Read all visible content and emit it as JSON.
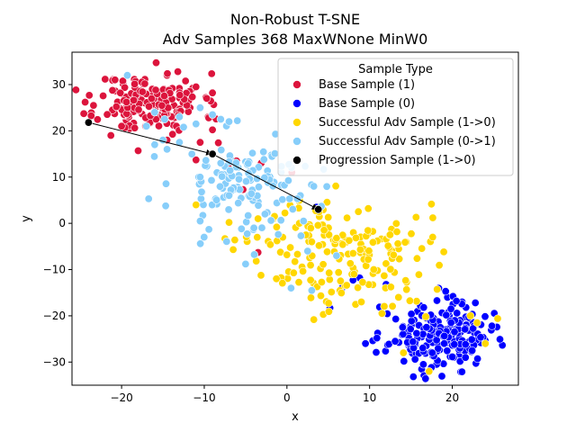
{
  "chart_data": {
    "type": "scatter",
    "title": "Non-Robust T-SNE\nAdv Samples 368 MaxWNone MinW0",
    "xlabel": "x",
    "ylabel": "y",
    "xlim": [
      -26,
      28
    ],
    "ylim": [
      -35,
      37
    ],
    "xticks": [
      -20,
      -10,
      0,
      10,
      20
    ],
    "yticks": [
      -30,
      -20,
      -10,
      0,
      10,
      20,
      30
    ],
    "grid": false,
    "legend": {
      "title": "Sample Type",
      "placement": "top-right"
    },
    "series": [
      {
        "name": "Base Sample (1)",
        "color": "#dc143c",
        "cluster": {
          "cx": -16.5,
          "cy": 26.0,
          "sx": 3.2,
          "sy": 3.2,
          "n": 175,
          "seed": 11
        },
        "points": [
          [
            -24,
            21.8
          ],
          [
            -18,
            15.7
          ],
          [
            -20.8,
            31.0
          ],
          [
            -13.2,
            32.8
          ],
          [
            -9.0,
            28.2
          ],
          [
            -23.4,
            25.5
          ],
          [
            -9.7,
            27.0
          ],
          [
            -11.0,
            13.7
          ],
          [
            -10.5,
            17.5
          ],
          [
            -14.5,
            18.0
          ],
          [
            -9.0,
            20.2
          ],
          [
            -21.3,
            19.0
          ],
          [
            -20.0,
            21.0
          ],
          [
            -11.0,
            29.5
          ],
          [
            -3.1,
            13.0
          ],
          [
            -2.4,
            10.3
          ],
          [
            -1.6,
            8.8
          ],
          [
            0.6,
            11.0
          ],
          [
            -3.5,
            -6.3
          ],
          [
            4.4,
            -8.9
          ],
          [
            -6.1,
            13.5
          ],
          [
            -5.3,
            7.3
          ],
          [
            -7.1,
            12.1
          ],
          [
            -8.3,
            17.4
          ]
        ]
      },
      {
        "name": "Base Sample (0)",
        "color": "#0000ff",
        "cluster": {
          "cx": 18.5,
          "cy": -24.5,
          "sx": 3.0,
          "sy": 3.4,
          "n": 195,
          "seed": 23
        },
        "points": [
          [
            3.6,
            3.5
          ],
          [
            12.0,
            -13.2
          ],
          [
            8.8,
            -11.8
          ],
          [
            8.0,
            -12.3
          ],
          [
            6.7,
            -13.9
          ],
          [
            5.2,
            -18.3
          ],
          [
            9.5,
            -26.0
          ],
          [
            10.8,
            -27.9
          ],
          [
            16.5,
            -30.5
          ],
          [
            22.4,
            -27.5
          ],
          [
            24.8,
            -22.2
          ],
          [
            22.8,
            -17.2
          ],
          [
            19.2,
            -14.7
          ],
          [
            17.4,
            -19.8
          ],
          [
            14.0,
            -22.5
          ],
          [
            13.1,
            -25.5
          ],
          [
            15.5,
            -29.4
          ],
          [
            21.6,
            -29.0
          ],
          [
            20.5,
            -16.8
          ],
          [
            11.2,
            -18.1
          ]
        ]
      },
      {
        "name": "Successful Adv Sample (1->0)",
        "color": "#ffd700",
        "cluster": {
          "cx": 7.0,
          "cy": -6.5,
          "sx": 5.0,
          "sy": 6.0,
          "n": 165,
          "seed": 37
        },
        "points": [
          [
            -11.0,
            4.0
          ],
          [
            -7.5,
            -3.3
          ],
          [
            -7.0,
            0.2
          ],
          [
            -6.3,
            -3.6
          ],
          [
            -6.5,
            -5.7
          ],
          [
            -3.5,
            1.0
          ],
          [
            -2.0,
            -4.6
          ],
          [
            0.0,
            -6.8
          ],
          [
            2.3,
            -2.5
          ],
          [
            5.0,
            1.3
          ],
          [
            17.2,
            -32.0
          ],
          [
            24.0,
            -26.0
          ],
          [
            25.5,
            -20.6
          ],
          [
            23.0,
            -21.5
          ],
          [
            22.2,
            -20.0
          ],
          [
            14.1,
            -28.0
          ],
          [
            16.8,
            -20.2
          ],
          [
            13.5,
            -16.0
          ],
          [
            11.5,
            -19.5
          ],
          [
            9.0,
            -17.0
          ],
          [
            10.5,
            -10.0
          ],
          [
            8.0,
            -6.5
          ],
          [
            3.0,
            -4.0
          ],
          [
            4.5,
            -1.5
          ],
          [
            6.0,
            -3.2
          ],
          [
            -1.5,
            1.5
          ],
          [
            -0.5,
            -3.0
          ],
          [
            1.5,
            0.0
          ]
        ]
      },
      {
        "name": "Successful Adv Sample (0->1)",
        "color": "#87cefa",
        "cluster": {
          "cx": -4.5,
          "cy": 8.0,
          "sx": 4.6,
          "sy": 5.2,
          "n": 130,
          "seed": 53
        },
        "points": [
          [
            -19.3,
            32.0
          ],
          [
            -16.0,
            24.0
          ],
          [
            -14.8,
            22.5
          ],
          [
            -13.0,
            23.0
          ],
          [
            -12.5,
            20.8
          ],
          [
            -11.0,
            21.5
          ],
          [
            -10.5,
            25.0
          ],
          [
            -9.0,
            23.5
          ],
          [
            -8.0,
            22.5
          ],
          [
            -7.0,
            22.0
          ],
          [
            -6.0,
            22.2
          ],
          [
            -17.0,
            21.0
          ],
          [
            -16.0,
            17.0
          ],
          [
            -15.0,
            18.0
          ],
          [
            -13.0,
            17.5
          ],
          [
            -14.5,
            16.0
          ],
          [
            -11.5,
            15.0
          ],
          [
            -10.5,
            10.0
          ],
          [
            -8.0,
            13.0
          ],
          [
            -7.0,
            6.0
          ],
          [
            -5.5,
            -1.2
          ],
          [
            -5.0,
            -8.8
          ],
          [
            -10.5,
            0.5
          ],
          [
            -4.0,
            -1.0
          ],
          [
            0.5,
            -14.0
          ],
          [
            3.0,
            -14.5
          ],
          [
            6.0,
            -7.0
          ],
          [
            2.5,
            -6.0
          ]
        ]
      },
      {
        "name": "Progression Sample (1->0)",
        "color": "#000000",
        "connected": true,
        "points": [
          [
            -24.0,
            21.8
          ],
          [
            -9.0,
            15.0
          ],
          [
            3.8,
            3.0
          ]
        ]
      }
    ]
  }
}
